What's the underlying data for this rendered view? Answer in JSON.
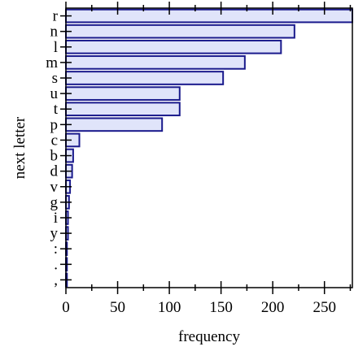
{
  "chart_data": {
    "type": "bar",
    "orientation": "horizontal",
    "title": "",
    "xlabel": "frequency",
    "ylabel": "next letter",
    "xlim": [
      0,
      277
    ],
    "x_ticks": [
      0,
      50,
      100,
      150,
      200,
      250
    ],
    "categories": [
      "r",
      "n",
      "l",
      "m",
      "s",
      "u",
      "t",
      "p",
      "c",
      "b",
      "d",
      "v",
      "g",
      "i",
      "y",
      ":",
      ".",
      ","
    ],
    "values": [
      277,
      221,
      208,
      173,
      152,
      110,
      110,
      93,
      13,
      7,
      6,
      4,
      3,
      2,
      2,
      1,
      1,
      1
    ],
    "grid": false,
    "colors": {
      "bar_fill": "#e0e4fa",
      "bar_stroke": "#1a1a8c"
    }
  }
}
